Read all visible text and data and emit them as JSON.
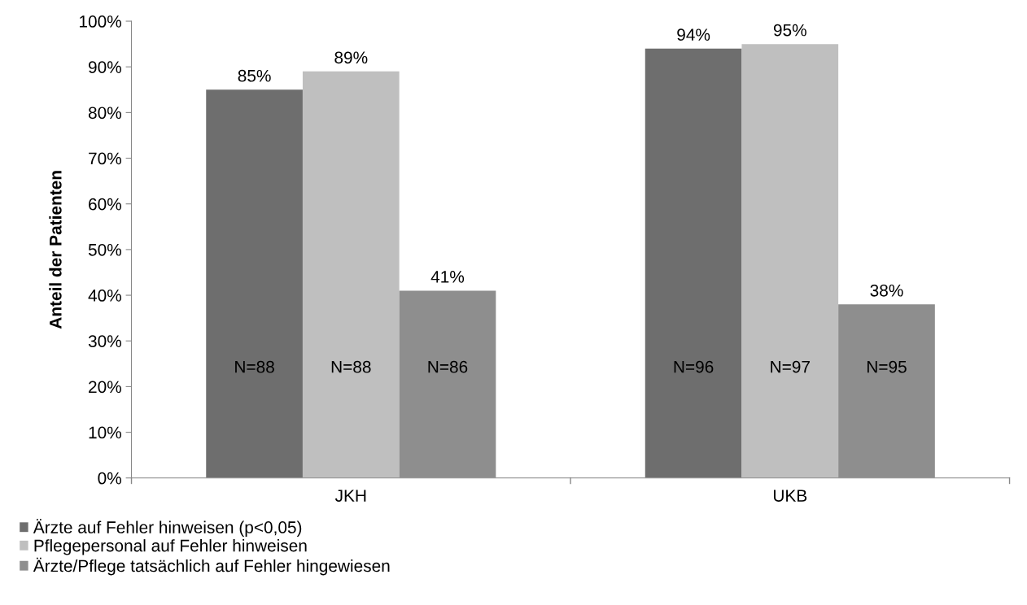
{
  "chart_data": {
    "type": "bar",
    "ylabel": "Anteil der Patienten",
    "categories": [
      "JKH",
      "UKB"
    ],
    "series": [
      {
        "name": "Ärzte auf Fehler hinweisen (p<0,05)",
        "color": "#6e6e6e",
        "values": [
          85,
          94
        ],
        "value_labels": [
          "85%",
          "94%"
        ]
      },
      {
        "name": "Pflegepersonal auf Fehler hinweisen",
        "color": "#bfbfbf",
        "values": [
          89,
          95
        ],
        "value_labels": [
          "89%",
          "95%"
        ]
      },
      {
        "name": "Ärzte/Pflege tatsächlich auf Fehler hingewiesen",
        "color": "#8e8e8e",
        "values": [
          41,
          38
        ],
        "value_labels": [
          "41%",
          "38%"
        ]
      }
    ],
    "annotations": [
      "N=88",
      "N=88",
      "N=86",
      "N=96",
      "N=97",
      "N=95"
    ],
    "ylim": [
      0,
      100
    ],
    "yticks": [
      {
        "value": 0,
        "label": "0%"
      },
      {
        "value": 10,
        "label": "10%"
      },
      {
        "value": 20,
        "label": "20%"
      },
      {
        "value": 30,
        "label": "30%"
      },
      {
        "value": 40,
        "label": "40%"
      },
      {
        "value": 50,
        "label": "50%"
      },
      {
        "value": 60,
        "label": "60%"
      },
      {
        "value": 70,
        "label": "70%"
      },
      {
        "value": 80,
        "label": "80%"
      },
      {
        "value": 90,
        "label": "90%"
      },
      {
        "value": 100,
        "label": "100%"
      }
    ],
    "grid": false,
    "legend": "bottom left"
  }
}
